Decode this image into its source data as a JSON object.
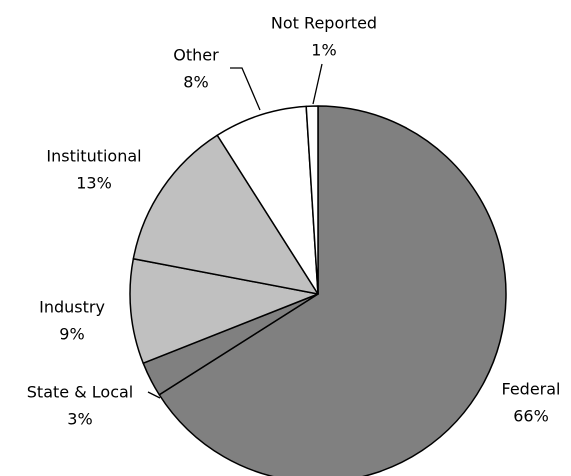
{
  "chart_data": {
    "type": "pie",
    "categories": [
      "Federal",
      "State & Local",
      "Industry",
      "Institutional",
      "Other",
      "Not Reported"
    ],
    "values": [
      66,
      3,
      9,
      13,
      8,
      1
    ],
    "value_labels": [
      "66%",
      "3%",
      "9%",
      "13%",
      "8%",
      "1%"
    ],
    "colors": [
      "#808080",
      "#808080",
      "#c0c0c0",
      "#c0c0c0",
      "#ffffff",
      "#ffffff"
    ]
  }
}
